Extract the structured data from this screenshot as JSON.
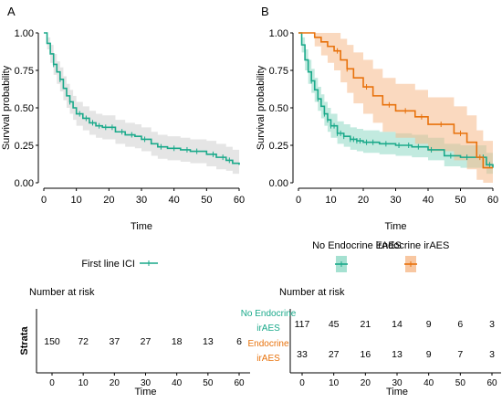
{
  "colors": {
    "ici": "#1aa98a",
    "ici_band": "#d3d3d3",
    "no_endo": "#1aa98a",
    "no_endo_band": "#8fd9c5",
    "endo": "#e8720c",
    "endo_band": "#f6b98a",
    "axis": "#000000"
  },
  "chart_data": [
    {
      "type": "line",
      "panel_label": "A",
      "xlabel": "Time",
      "ylabel": "Survival probability",
      "xlim": [
        0,
        60
      ],
      "ylim": [
        0,
        1
      ],
      "x_ticks": [
        "0",
        "10",
        "20",
        "30",
        "40",
        "50",
        "60"
      ],
      "y_ticks": [
        "0.00",
        "0.25",
        "0.50",
        "0.75",
        "1.00"
      ],
      "grid": false,
      "legend_position": "bottom",
      "series": [
        {
          "name": "First line ICI",
          "x": [
            0,
            1,
            2,
            3,
            4,
            5,
            6,
            7,
            8,
            9,
            10,
            12,
            14,
            16,
            18,
            20,
            22,
            25,
            28,
            30,
            33,
            35,
            38,
            42,
            45,
            48,
            50,
            53,
            56,
            58,
            60
          ],
          "y": [
            1.0,
            0.93,
            0.86,
            0.79,
            0.74,
            0.69,
            0.63,
            0.58,
            0.54,
            0.5,
            0.46,
            0.43,
            0.4,
            0.38,
            0.37,
            0.37,
            0.34,
            0.32,
            0.31,
            0.29,
            0.26,
            0.24,
            0.23,
            0.22,
            0.21,
            0.21,
            0.19,
            0.17,
            0.15,
            0.13,
            0.12
          ],
          "lower": [
            1.0,
            0.89,
            0.8,
            0.72,
            0.66,
            0.61,
            0.55,
            0.5,
            0.46,
            0.42,
            0.38,
            0.35,
            0.32,
            0.3,
            0.29,
            0.29,
            0.26,
            0.24,
            0.23,
            0.21,
            0.18,
            0.16,
            0.15,
            0.14,
            0.13,
            0.13,
            0.11,
            0.09,
            0.08,
            0.06,
            0.05
          ],
          "upper": [
            1.0,
            0.97,
            0.92,
            0.86,
            0.81,
            0.77,
            0.71,
            0.66,
            0.62,
            0.58,
            0.54,
            0.51,
            0.48,
            0.46,
            0.45,
            0.45,
            0.42,
            0.4,
            0.39,
            0.37,
            0.34,
            0.32,
            0.31,
            0.3,
            0.29,
            0.29,
            0.28,
            0.26,
            0.24,
            0.22,
            0.21
          ],
          "censor_x": [
            3,
            5,
            8,
            11,
            13,
            15,
            17,
            19,
            21,
            24,
            27,
            31,
            36,
            40,
            44,
            47,
            52,
            55,
            57
          ]
        }
      ],
      "risk_table": {
        "title": "Number at risk",
        "ylabel": "Strata",
        "xlabel": "Time",
        "x_ticks": [
          "0",
          "10",
          "20",
          "30",
          "40",
          "50",
          "60"
        ],
        "rows": [
          {
            "label": "",
            "values": [
              "150",
              "72",
              "37",
              "27",
              "18",
              "13",
              "6"
            ]
          }
        ]
      }
    },
    {
      "type": "line",
      "panel_label": "B",
      "xlabel": "Time",
      "ylabel": "Survival probability",
      "xlim": [
        0,
        60
      ],
      "ylim": [
        0,
        1
      ],
      "x_ticks": [
        "0",
        "10",
        "20",
        "30",
        "40",
        "50",
        "60"
      ],
      "y_ticks": [
        "0.00",
        "0.25",
        "0.50",
        "0.75",
        "1.00"
      ],
      "grid": false,
      "legend_position": "bottom",
      "series": [
        {
          "name": "No Endocrine irAES",
          "x": [
            0,
            1,
            2,
            3,
            4,
            5,
            6,
            7,
            8,
            9,
            10,
            12,
            14,
            16,
            18,
            20,
            25,
            30,
            35,
            40,
            45,
            50,
            55,
            58,
            60
          ],
          "y": [
            1.0,
            0.92,
            0.82,
            0.74,
            0.68,
            0.62,
            0.56,
            0.51,
            0.46,
            0.42,
            0.38,
            0.33,
            0.31,
            0.29,
            0.28,
            0.27,
            0.26,
            0.25,
            0.24,
            0.22,
            0.18,
            0.17,
            0.17,
            0.12,
            0.1
          ],
          "lower": [
            1.0,
            0.87,
            0.75,
            0.66,
            0.6,
            0.54,
            0.48,
            0.43,
            0.38,
            0.34,
            0.3,
            0.26,
            0.24,
            0.22,
            0.21,
            0.2,
            0.19,
            0.18,
            0.17,
            0.15,
            0.11,
            0.1,
            0.1,
            0.06,
            0.04
          ],
          "upper": [
            1.0,
            0.97,
            0.89,
            0.82,
            0.76,
            0.7,
            0.64,
            0.59,
            0.54,
            0.5,
            0.46,
            0.41,
            0.39,
            0.37,
            0.36,
            0.35,
            0.34,
            0.33,
            0.32,
            0.3,
            0.26,
            0.25,
            0.25,
            0.2,
            0.18
          ],
          "censor_x": [
            4,
            6,
            8,
            9,
            10,
            11,
            12,
            13,
            14,
            16,
            17,
            18,
            19,
            21,
            23,
            27,
            31,
            34,
            37,
            41,
            47,
            52,
            57,
            59
          ]
        },
        {
          "name": "Endocrine irAES",
          "x": [
            0,
            3,
            5,
            7,
            9,
            11,
            13,
            15,
            17,
            20,
            23,
            26,
            30,
            33,
            36,
            40,
            45,
            48,
            52,
            55,
            57,
            60
          ],
          "y": [
            1.0,
            1.0,
            0.97,
            0.94,
            0.91,
            0.88,
            0.82,
            0.76,
            0.7,
            0.64,
            0.58,
            0.52,
            0.48,
            0.48,
            0.44,
            0.39,
            0.39,
            0.33,
            0.27,
            0.17,
            0.1,
            0.1
          ],
          "lower": [
            1.0,
            1.0,
            0.91,
            0.85,
            0.8,
            0.75,
            0.67,
            0.6,
            0.53,
            0.46,
            0.4,
            0.34,
            0.3,
            0.3,
            0.26,
            0.21,
            0.21,
            0.15,
            0.09,
            0.02,
            0.0,
            0.0
          ],
          "upper": [
            1.0,
            1.0,
            1.0,
            1.0,
            1.0,
            1.0,
            0.96,
            0.92,
            0.87,
            0.82,
            0.76,
            0.7,
            0.66,
            0.66,
            0.62,
            0.57,
            0.57,
            0.51,
            0.45,
            0.35,
            0.28,
            0.28
          ],
          "censor_x": [
            12,
            15,
            21,
            28,
            33,
            38,
            44,
            50,
            56
          ]
        }
      ],
      "risk_table": {
        "title": "Number at risk",
        "ylabel": "",
        "xlabel": "Time",
        "x_ticks": [
          "0",
          "10",
          "20",
          "30",
          "40",
          "50",
          "60"
        ],
        "rows": [
          {
            "label": "No Endocrine irAES",
            "label_lines": [
              "No Endocrine",
              "irAES"
            ],
            "values": [
              "117",
              "45",
              "21",
              "14",
              "9",
              "6",
              "3"
            ]
          },
          {
            "label": "Endocrine irAES",
            "label_lines": [
              "Endocrine",
              "irAES"
            ],
            "values": [
              "33",
              "27",
              "16",
              "13",
              "9",
              "7",
              "3"
            ]
          }
        ]
      }
    }
  ]
}
